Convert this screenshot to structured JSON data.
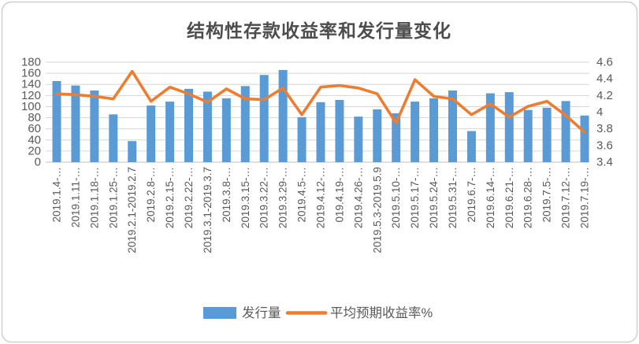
{
  "title": "结构性存款收益率和发行量变化",
  "colors": {
    "bar": "#5B9BD5",
    "line": "#ED7D31",
    "grid": "#D6D6D6",
    "axis_line": "#BFBFBF",
    "tick_text": "#595959",
    "title_text": "#4d4d4d",
    "card_border": "#CFCFCF"
  },
  "legend": {
    "items": [
      {
        "label": "发行量",
        "marker": "rect",
        "color": "#5B9BD5"
      },
      {
        "label": "平均预期收益率%",
        "marker": "line",
        "color": "#ED7D31"
      }
    ]
  },
  "chart_data": {
    "type": "bar",
    "subtype": "bar+line-combo",
    "title": "结构性存款收益率和发行量变化",
    "grid": true,
    "legend_position": "bottom",
    "categories": [
      "2019.1.4-…",
      "2019.1.11-…",
      "2019.1.18-…",
      "2019.1.25-…",
      "2019.2.1-2019.2.7",
      "2019.2.8-…",
      "2019.2.15-…",
      "2019.2.22-…",
      "2019.3.1-2019.3.7",
      "2019.3.8-…",
      "2019.3.15-…",
      "2019.3.22-…",
      "2019.3.29-…",
      "2019.4.5-…",
      "2019.4.12-…",
      "019.4.19-…",
      "2019.4.26-…",
      "2019.5.3-2019.5.9",
      "2019.5.10-…",
      "2019.5.17-…",
      "2019.5.24-…",
      "2019.5.31-…",
      "2019.6.7-…",
      "2019.6.14-…",
      "2019.6.21-…",
      "2019.6.28-…",
      "2019.7.5-…",
      "2019.7.12-…",
      "2019.7.19-…"
    ],
    "series": [
      {
        "name": "发行量",
        "type": "bar",
        "axis": "left",
        "color": "#5B9BD5",
        "values": [
          146,
          138,
          129,
          86,
          38,
          102,
          109,
          132,
          127,
          115,
          137,
          157,
          166,
          81,
          108,
          112,
          82,
          95,
          88,
          109,
          115,
          129,
          56,
          124,
          126,
          94,
          98,
          110,
          84
        ]
      },
      {
        "name": "平均预期收益率%",
        "type": "line",
        "axis": "right",
        "color": "#ED7D31",
        "values": [
          4.22,
          4.21,
          4.19,
          4.16,
          4.49,
          4.13,
          4.3,
          4.22,
          4.12,
          4.28,
          4.16,
          4.15,
          4.29,
          3.97,
          4.3,
          4.32,
          4.29,
          4.22,
          3.87,
          4.39,
          4.19,
          4.16,
          3.97,
          4.1,
          3.94,
          4.07,
          4.13,
          3.96,
          3.76
        ]
      }
    ],
    "left_axis": {
      "min": 0,
      "max": 180,
      "step": 20,
      "ticks": [
        "180",
        "160",
        "140",
        "120",
        "100",
        "80",
        "60",
        "40",
        "20",
        "0"
      ]
    },
    "right_axis": {
      "min": 3.4,
      "max": 4.6,
      "step": 0.2,
      "ticks": [
        "4.6",
        "4.4",
        "4.2",
        "4",
        "3.8",
        "3.6",
        "3.4"
      ]
    }
  }
}
